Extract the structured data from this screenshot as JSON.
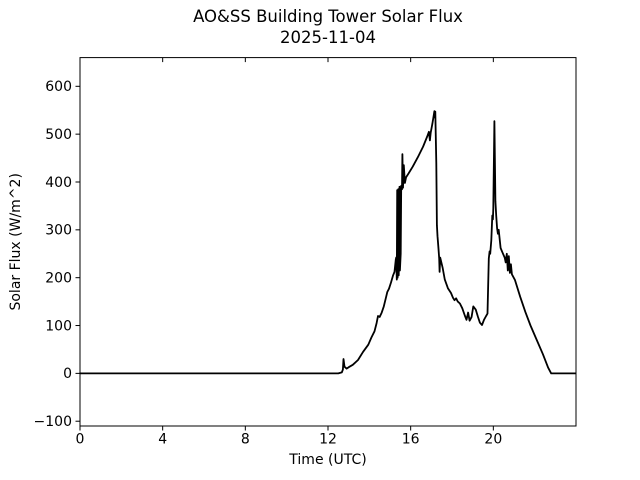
{
  "chart_data": {
    "type": "line",
    "title": "AO&SS Building Tower Solar Flux",
    "subtitle": "2025-11-04",
    "xlabel": "Time (UTC)",
    "ylabel": "Solar Flux (W/m^2)",
    "xlim": [
      0,
      24
    ],
    "ylim": [
      -110,
      660
    ],
    "xticks": [
      0,
      4,
      8,
      12,
      16,
      20
    ],
    "yticks": [
      -100,
      0,
      100,
      200,
      300,
      400,
      500,
      600
    ],
    "grid": false,
    "legend": null,
    "line_color": "#000000",
    "axis_color": "#000000",
    "background_color": "#ffffff",
    "line_width": 1.8,
    "series": [
      {
        "name": "solar-flux",
        "points": [
          [
            0.0,
            0
          ],
          [
            12.5,
            0
          ],
          [
            12.67,
            2
          ],
          [
            12.72,
            8
          ],
          [
            12.75,
            30
          ],
          [
            12.8,
            14
          ],
          [
            12.9,
            10
          ],
          [
            13.0,
            13
          ],
          [
            13.2,
            18
          ],
          [
            13.45,
            28
          ],
          [
            13.7,
            45
          ],
          [
            13.95,
            60
          ],
          [
            14.1,
            75
          ],
          [
            14.25,
            88
          ],
          [
            14.35,
            105
          ],
          [
            14.42,
            120
          ],
          [
            14.5,
            118
          ],
          [
            14.6,
            127
          ],
          [
            14.7,
            140
          ],
          [
            14.8,
            158
          ],
          [
            14.87,
            170
          ],
          [
            14.95,
            177
          ],
          [
            15.05,
            190
          ],
          [
            15.15,
            205
          ],
          [
            15.22,
            212
          ],
          [
            15.28,
            238
          ],
          [
            15.3,
            242
          ],
          [
            15.33,
            196
          ],
          [
            15.35,
            383
          ],
          [
            15.37,
            200
          ],
          [
            15.4,
            385
          ],
          [
            15.42,
            205
          ],
          [
            15.44,
            260
          ],
          [
            15.46,
            390
          ],
          [
            15.48,
            215
          ],
          [
            15.52,
            250
          ],
          [
            15.54,
            392
          ],
          [
            15.58,
            385
          ],
          [
            15.6,
            458
          ],
          [
            15.63,
            388
          ],
          [
            15.67,
            435
          ],
          [
            15.72,
            398
          ],
          [
            15.78,
            410
          ],
          [
            15.9,
            418
          ],
          [
            16.1,
            432
          ],
          [
            16.35,
            452
          ],
          [
            16.6,
            474
          ],
          [
            16.8,
            495
          ],
          [
            16.88,
            505
          ],
          [
            16.93,
            487
          ],
          [
            16.97,
            503
          ],
          [
            17.05,
            522
          ],
          [
            17.12,
            540
          ],
          [
            17.15,
            548
          ],
          [
            17.17,
            535
          ],
          [
            17.19,
            547
          ],
          [
            17.24,
            440
          ],
          [
            17.27,
            310
          ],
          [
            17.3,
            287
          ],
          [
            17.34,
            263
          ],
          [
            17.38,
            240
          ],
          [
            17.4,
            212
          ],
          [
            17.43,
            242
          ],
          [
            17.47,
            235
          ],
          [
            17.55,
            220
          ],
          [
            17.65,
            196
          ],
          [
            17.8,
            178
          ],
          [
            17.95,
            168
          ],
          [
            18.05,
            158
          ],
          [
            18.12,
            153
          ],
          [
            18.2,
            157
          ],
          [
            18.28,
            150
          ],
          [
            18.38,
            146
          ],
          [
            18.5,
            136
          ],
          [
            18.62,
            121
          ],
          [
            18.7,
            112
          ],
          [
            18.78,
            127
          ],
          [
            18.85,
            110
          ],
          [
            18.95,
            118
          ],
          [
            19.03,
            140
          ],
          [
            19.15,
            133
          ],
          [
            19.25,
            119
          ],
          [
            19.35,
            106
          ],
          [
            19.45,
            101
          ],
          [
            19.55,
            112
          ],
          [
            19.65,
            120
          ],
          [
            19.72,
            125
          ],
          [
            19.78,
            240
          ],
          [
            19.82,
            255
          ],
          [
            19.85,
            250
          ],
          [
            19.9,
            278
          ],
          [
            19.95,
            330
          ],
          [
            19.98,
            322
          ],
          [
            20.0,
            345
          ],
          [
            20.05,
            527
          ],
          [
            20.1,
            360
          ],
          [
            20.14,
            330
          ],
          [
            20.18,
            303
          ],
          [
            20.22,
            292
          ],
          [
            20.26,
            300
          ],
          [
            20.35,
            262
          ],
          [
            20.45,
            252
          ],
          [
            20.55,
            242
          ],
          [
            20.6,
            232
          ],
          [
            20.65,
            250
          ],
          [
            20.7,
            215
          ],
          [
            20.75,
            245
          ],
          [
            20.8,
            210
          ],
          [
            20.85,
            228
          ],
          [
            20.9,
            207
          ],
          [
            21.05,
            195
          ],
          [
            21.3,
            160
          ],
          [
            21.55,
            128
          ],
          [
            21.8,
            100
          ],
          [
            22.1,
            70
          ],
          [
            22.4,
            40
          ],
          [
            22.65,
            12
          ],
          [
            22.8,
            0
          ],
          [
            23.98,
            0
          ]
        ]
      }
    ]
  }
}
